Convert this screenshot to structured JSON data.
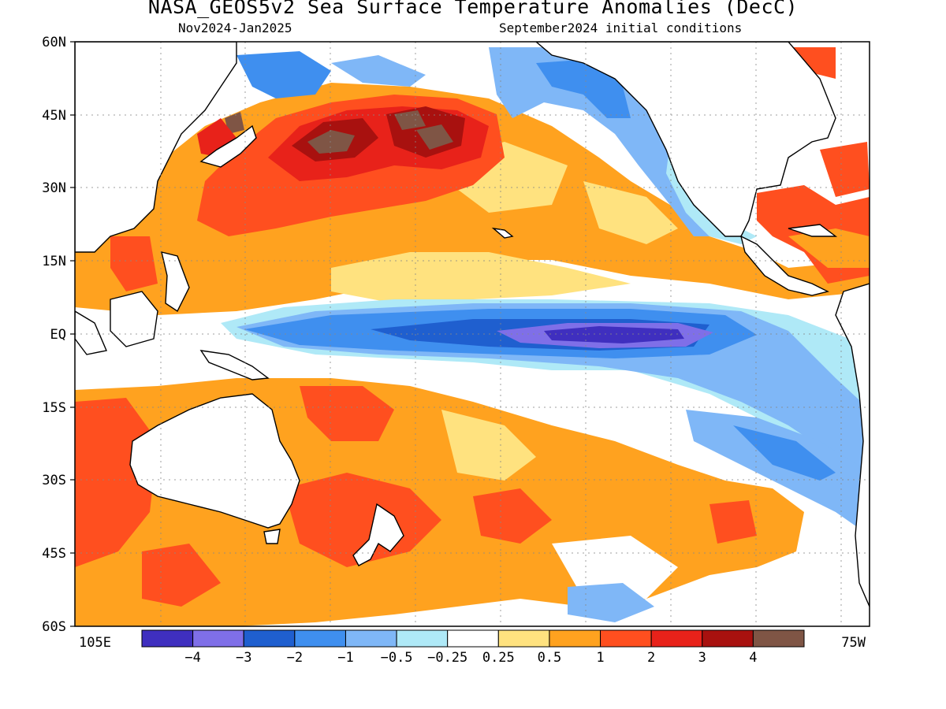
{
  "title": "NASA_GEOS5v2 Sea Surface Temperature Anomalies (DecC)",
  "subtitle_left": "Nov2024-Jan2025",
  "subtitle_right": "September2024 initial conditions",
  "lat_labels": [
    "60N",
    "45N",
    "30N",
    "15N",
    "EQ",
    "15S",
    "30S",
    "45S",
    "60S"
  ],
  "lon_left_label": "105E",
  "lon_right_label": "75W",
  "colorbar": {
    "colors": [
      "#3f2fbf",
      "#7f6fe8",
      "#1f5fcf",
      "#3f8fef",
      "#7fb7f7",
      "#afe9f7",
      "#ffffff",
      "#ffe27f",
      "#ffa21f",
      "#ff4f1f",
      "#e8221a",
      "#a8110f",
      "#7f5545"
    ],
    "labels": [
      "-4",
      "-3",
      "-2",
      "-1",
      "-0.5",
      "-0.25",
      "0.25",
      "0.5",
      "1",
      "2",
      "3",
      "4"
    ]
  }
}
